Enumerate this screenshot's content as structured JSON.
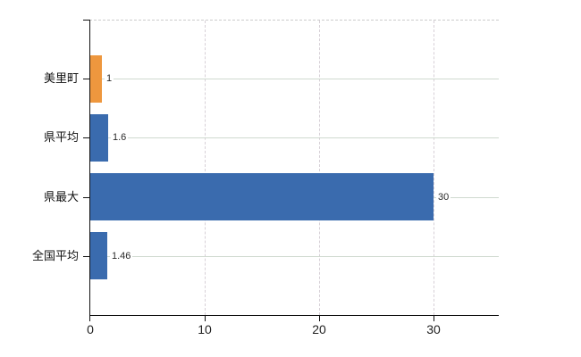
{
  "chart_data": {
    "type": "bar",
    "orientation": "horizontal",
    "title": "",
    "categories": [
      "美里町",
      "県平均",
      "県最大",
      "全国平均"
    ],
    "values": [
      1,
      1.6,
      30,
      1.46
    ],
    "value_labels": [
      "1",
      "1.6",
      "30",
      "1.46"
    ],
    "bar_colors": [
      "#ee973e",
      "#3a6bae",
      "#3a6bae",
      "#3a6bae"
    ],
    "x_axis": {
      "ticks": [
        0,
        10,
        20,
        30
      ],
      "tick_labels": [
        "0",
        "10",
        "20",
        "30"
      ],
      "min": 0,
      "max": 35.8
    },
    "legend": "none",
    "grid": {
      "horizontal": true,
      "vertical": true,
      "top_border": "dashed"
    },
    "colors": {
      "bar_blue": "#3a6bae",
      "bar_orange": "#ee973e",
      "grid_horizontal": "#cfd9cf",
      "grid_vertical": "#d7d0d7",
      "axis": "#111111",
      "category_text": "#111111",
      "value_text": "#2b2b2b",
      "tick_text": "#222222",
      "background": "#ffffff"
    }
  }
}
